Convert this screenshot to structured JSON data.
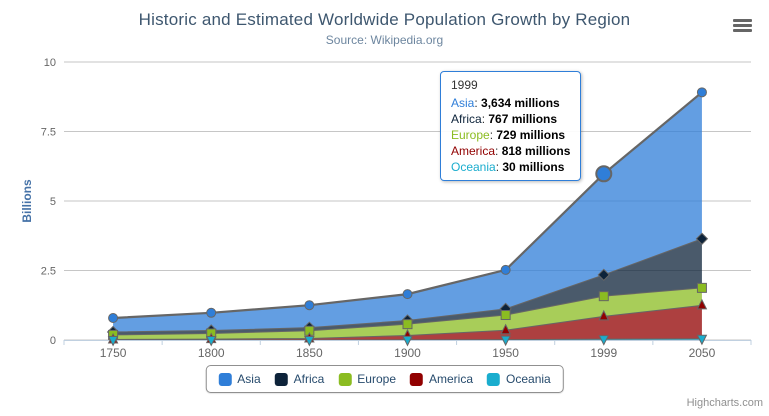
{
  "chart": {
    "title": "Historic and Estimated Worldwide Population Growth by Region",
    "subtitle": "Source: Wikipedia.org",
    "y_axis_title": "Billions",
    "credits": "Highcharts.com"
  },
  "chart_data": {
    "type": "area",
    "stacking": "normal",
    "title": "Historic and Estimated Worldwide Population Growth by Region",
    "subtitle": "Source: Wikipedia.org",
    "xlabel": "",
    "ylabel": "Billions",
    "ylim": [
      0,
      10
    ],
    "yticks": [
      0,
      2.5,
      5,
      7.5,
      10
    ],
    "grid": true,
    "legend_position": "bottom-center",
    "values_unit": "millions",
    "categories": [
      "1750",
      "1800",
      "1850",
      "1900",
      "1950",
      "1999",
      "2050"
    ],
    "series": [
      {
        "name": "Asia",
        "color": "#2f7ed8",
        "marker": "circle",
        "values_millions": [
          502,
          635,
          809,
          947,
          1402,
          3634,
          5268
        ]
      },
      {
        "name": "Africa",
        "color": "#0d233a",
        "marker": "diamond",
        "values_millions": [
          106,
          107,
          111,
          133,
          221,
          767,
          1766
        ]
      },
      {
        "name": "Europe",
        "color": "#8bbc21",
        "marker": "square",
        "values_millions": [
          163,
          203,
          276,
          408,
          547,
          729,
          628
        ]
      },
      {
        "name": "America",
        "color": "#910000",
        "marker": "triangle",
        "values_millions": [
          18,
          31,
          54,
          156,
          339,
          818,
          1201
        ]
      },
      {
        "name": "Oceania",
        "color": "#1aadce",
        "marker": "triangle-down",
        "values_millions": [
          2,
          2,
          2,
          6,
          13,
          30,
          46
        ]
      }
    ]
  },
  "tooltip": {
    "header": "1999",
    "border_color": "#2f7ed8",
    "rows": [
      {
        "name": "Asia",
        "color": "#2f7ed8",
        "value": "3,634 millions"
      },
      {
        "name": "Africa",
        "color": "#0d233a",
        "value": "767 millions"
      },
      {
        "name": "Europe",
        "color": "#8bbc21",
        "value": "729 millions"
      },
      {
        "name": "America",
        "color": "#910000",
        "value": "818 millions"
      },
      {
        "name": "Oceania",
        "color": "#1aadce",
        "value": "30 millions"
      }
    ]
  },
  "hover": {
    "series": "Asia",
    "category": "1999"
  },
  "colors": {
    "grid": "#C6C6C6",
    "axis_line": "#C0D0E0",
    "series_line": "#666666",
    "axis_label": "#666666",
    "title": "#3E576F",
    "subtitle": "#6D869F",
    "y_title": "#4572A7",
    "legend_text": "#274b6d"
  }
}
